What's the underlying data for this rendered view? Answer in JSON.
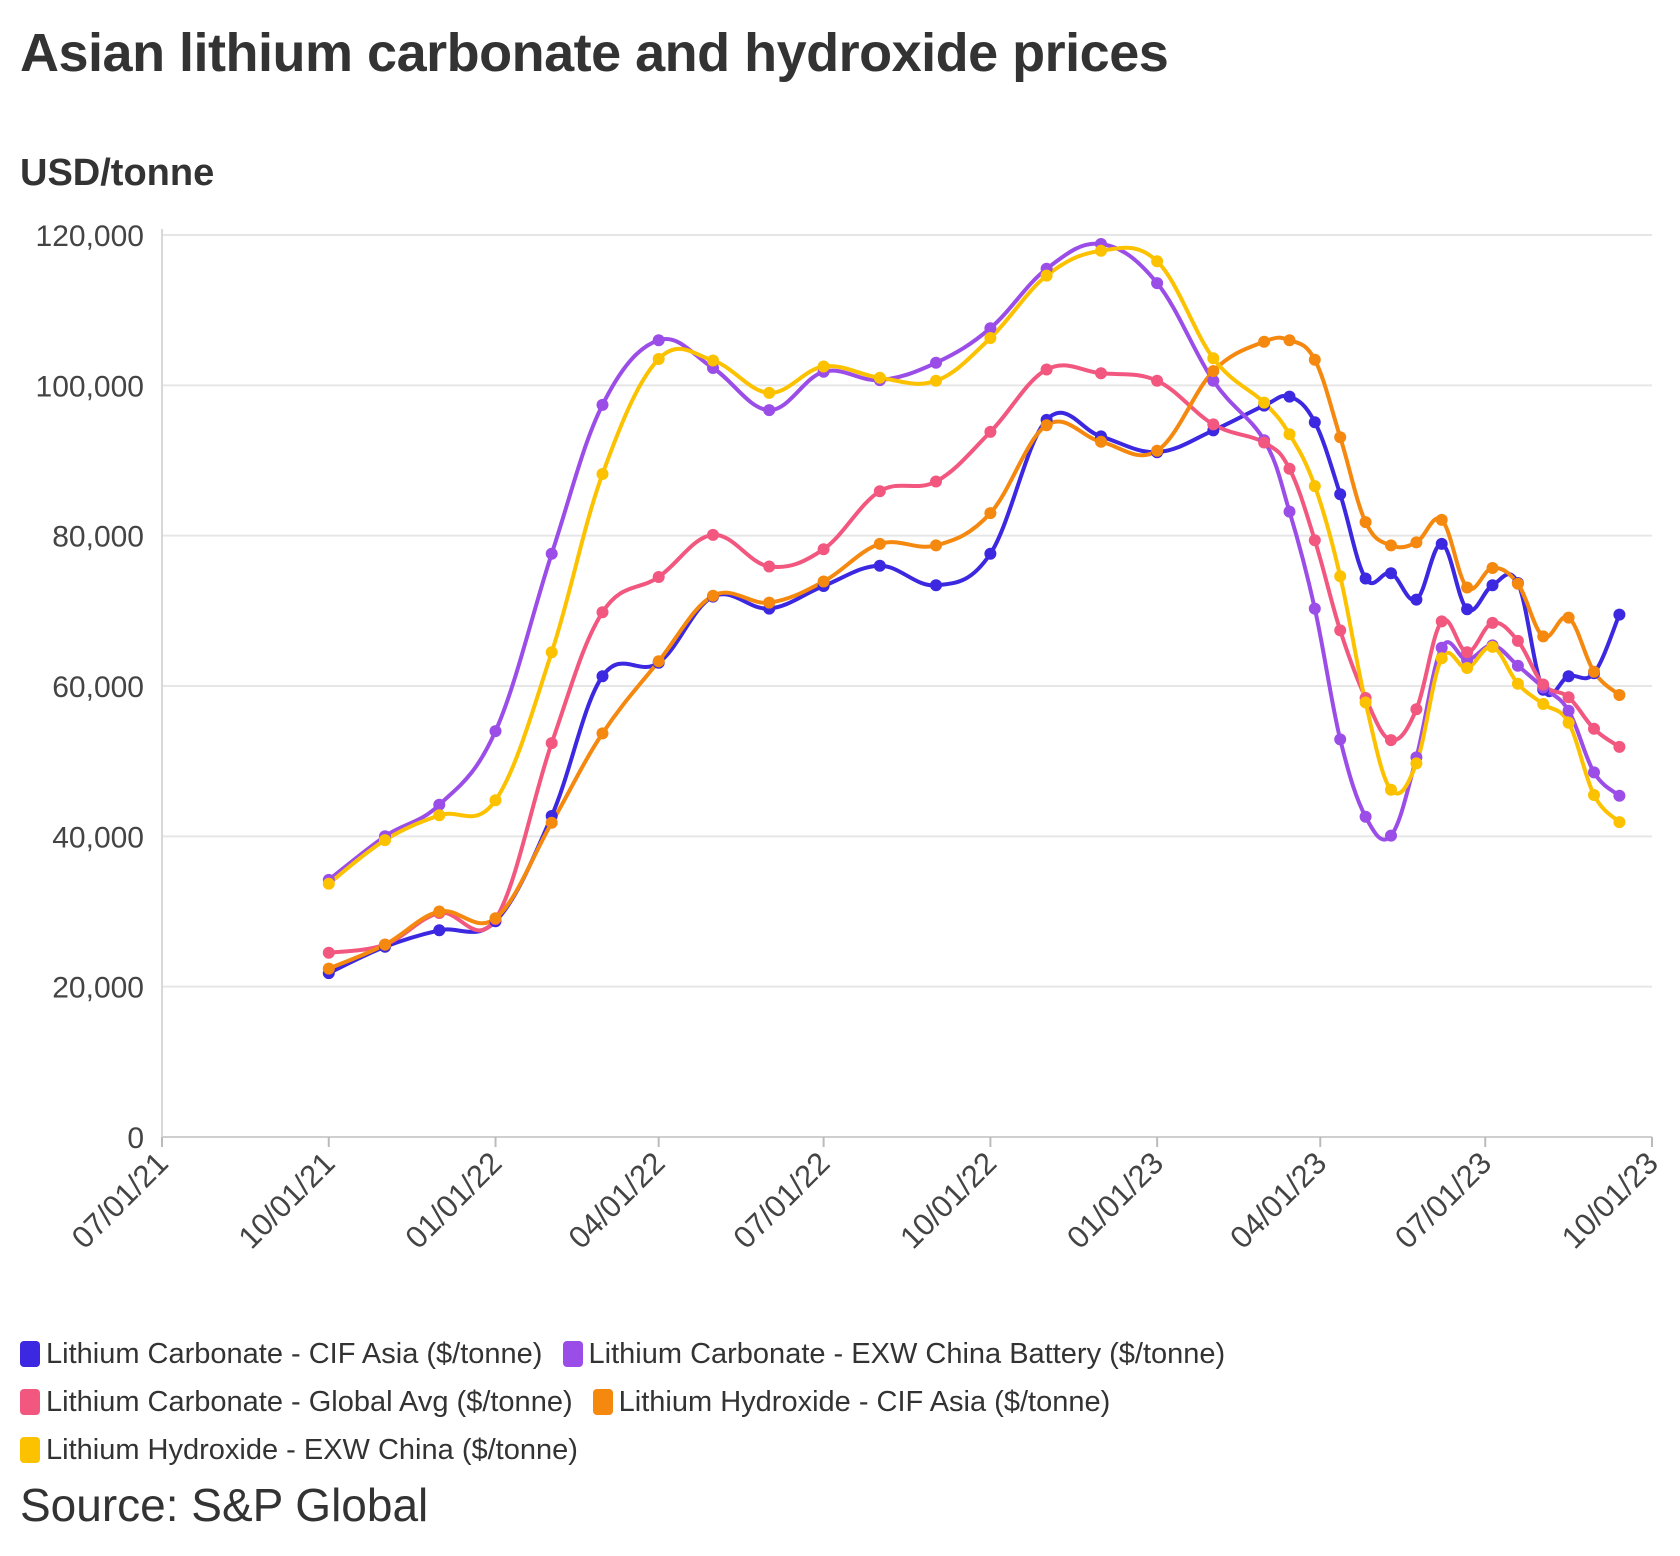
{
  "title": "Asian lithium carbonate and hydroxide prices",
  "unit_label": "USD/tonne",
  "source": "Source: S&P Global",
  "chart_data": {
    "type": "line",
    "title": "Asian lithium carbonate and hydroxide prices",
    "ylabel": "USD/tonne",
    "xlabel": "",
    "ylim": [
      0,
      120000
    ],
    "xlim": [
      "2021-07-01",
      "2023-10-01"
    ],
    "y_ticks": [
      0,
      20000,
      40000,
      60000,
      80000,
      100000,
      120000
    ],
    "y_tick_labels": [
      "0",
      "20,000",
      "40,000",
      "60,000",
      "80,000",
      "100,000",
      "120,000"
    ],
    "x_ticks": [
      "2021-07-01",
      "2021-10-01",
      "2022-01-01",
      "2022-04-01",
      "2022-07-01",
      "2022-10-01",
      "2023-01-01",
      "2023-04-01",
      "2023-07-01",
      "2023-10-01"
    ],
    "x_tick_labels": [
      "07/01/21",
      "10/01/21",
      "01/01/22",
      "04/01/22",
      "07/01/22",
      "10/01/22",
      "01/01/23",
      "04/01/23",
      "07/01/23",
      "10/01/23"
    ],
    "grid": "horizontal",
    "legend_position": "bottom",
    "series": [
      {
        "name": "Lithium Carbonate - CIF Asia ($/tonne)",
        "color": "#3b28e0",
        "points": [
          [
            "2021-10-01",
            21800
          ],
          [
            "2021-11-01",
            25300
          ],
          [
            "2021-12-01",
            27500
          ],
          [
            "2022-01-01",
            28700
          ],
          [
            "2022-02-01",
            42700
          ],
          [
            "2022-03-01",
            61300
          ],
          [
            "2022-04-01",
            63100
          ],
          [
            "2022-05-01",
            71900
          ],
          [
            "2022-06-01",
            70300
          ],
          [
            "2022-07-01",
            73300
          ],
          [
            "2022-08-01",
            76000
          ],
          [
            "2022-09-01",
            73400
          ],
          [
            "2022-10-01",
            77600
          ],
          [
            "2022-11-01",
            95400
          ],
          [
            "2022-12-01",
            93200
          ],
          [
            "2023-01-01",
            91100
          ],
          [
            "2023-02-01",
            94000
          ],
          [
            "2023-03-01",
            97300
          ],
          [
            "2023-03-15",
            98500
          ],
          [
            "2023-03-29",
            95100
          ],
          [
            "2023-04-12",
            85500
          ],
          [
            "2023-04-26",
            74300
          ],
          [
            "2023-05-10",
            75000
          ],
          [
            "2023-05-24",
            71500
          ],
          [
            "2023-06-07",
            78900
          ],
          [
            "2023-06-21",
            70200
          ],
          [
            "2023-07-05",
            73400
          ],
          [
            "2023-07-19",
            73700
          ],
          [
            "2023-08-02",
            59500
          ],
          [
            "2023-08-16",
            61300
          ],
          [
            "2023-08-30",
            61700
          ],
          [
            "2023-09-13",
            69500
          ]
        ]
      },
      {
        "name": "Lithium Carbonate - EXW China Battery ($/tonne)",
        "color": "#9b4de8",
        "points": [
          [
            "2021-10-01",
            34200
          ],
          [
            "2021-11-01",
            40000
          ],
          [
            "2021-12-01",
            44200
          ],
          [
            "2022-01-01",
            54000
          ],
          [
            "2022-02-01",
            77600
          ],
          [
            "2022-03-01",
            97400
          ],
          [
            "2022-04-01",
            106000
          ],
          [
            "2022-05-01",
            102300
          ],
          [
            "2022-06-01",
            96700
          ],
          [
            "2022-07-01",
            101800
          ],
          [
            "2022-08-01",
            100700
          ],
          [
            "2022-09-01",
            103000
          ],
          [
            "2022-10-01",
            107600
          ],
          [
            "2022-11-01",
            115500
          ],
          [
            "2022-12-01",
            118800
          ],
          [
            "2023-01-01",
            113600
          ],
          [
            "2023-02-01",
            100600
          ],
          [
            "2023-03-01",
            92700
          ],
          [
            "2023-03-15",
            83200
          ],
          [
            "2023-03-29",
            70300
          ],
          [
            "2023-04-12",
            52900
          ],
          [
            "2023-04-26",
            42600
          ],
          [
            "2023-05-10",
            40100
          ],
          [
            "2023-05-24",
            50500
          ],
          [
            "2023-06-07",
            65100
          ],
          [
            "2023-06-21",
            63500
          ],
          [
            "2023-07-05",
            65400
          ],
          [
            "2023-07-19",
            62700
          ],
          [
            "2023-08-02",
            59800
          ],
          [
            "2023-08-16",
            56700
          ],
          [
            "2023-08-30",
            48500
          ],
          [
            "2023-09-13",
            45400
          ]
        ]
      },
      {
        "name": "Lithium Carbonate - Global Avg ($/tonne)",
        "color": "#f2587f",
        "points": [
          [
            "2021-10-01",
            24500
          ],
          [
            "2021-11-01",
            25600
          ],
          [
            "2021-12-01",
            29800
          ],
          [
            "2022-01-01",
            29000
          ],
          [
            "2022-02-01",
            52400
          ],
          [
            "2022-03-01",
            69800
          ],
          [
            "2022-04-01",
            74500
          ],
          [
            "2022-05-01",
            80100
          ],
          [
            "2022-06-01",
            75900
          ],
          [
            "2022-07-01",
            78200
          ],
          [
            "2022-08-01",
            85900
          ],
          [
            "2022-09-01",
            87200
          ],
          [
            "2022-10-01",
            93800
          ],
          [
            "2022-11-01",
            102100
          ],
          [
            "2022-12-01",
            101600
          ],
          [
            "2023-01-01",
            100600
          ],
          [
            "2023-02-01",
            94800
          ],
          [
            "2023-03-01",
            92400
          ],
          [
            "2023-03-15",
            88900
          ],
          [
            "2023-03-29",
            79400
          ],
          [
            "2023-04-12",
            67400
          ],
          [
            "2023-04-26",
            58400
          ],
          [
            "2023-05-10",
            52800
          ],
          [
            "2023-05-24",
            56900
          ],
          [
            "2023-06-07",
            68600
          ],
          [
            "2023-06-21",
            64500
          ],
          [
            "2023-07-05",
            68400
          ],
          [
            "2023-07-19",
            66000
          ],
          [
            "2023-08-02",
            60200
          ],
          [
            "2023-08-16",
            58500
          ],
          [
            "2023-08-30",
            54300
          ],
          [
            "2023-09-13",
            51900
          ]
        ]
      },
      {
        "name": "Lithium Hydroxide - CIF Asia ($/tonne)",
        "color": "#f5880f",
        "points": [
          [
            "2021-10-01",
            22400
          ],
          [
            "2021-11-01",
            25600
          ],
          [
            "2021-12-01",
            30000
          ],
          [
            "2022-01-01",
            29100
          ],
          [
            "2022-02-01",
            41800
          ],
          [
            "2022-03-01",
            53700
          ],
          [
            "2022-04-01",
            63300
          ],
          [
            "2022-05-01",
            72000
          ],
          [
            "2022-06-01",
            71100
          ],
          [
            "2022-07-01",
            73900
          ],
          [
            "2022-08-01",
            78900
          ],
          [
            "2022-09-01",
            78700
          ],
          [
            "2022-10-01",
            83000
          ],
          [
            "2022-11-01",
            94700
          ],
          [
            "2022-12-01",
            92500
          ],
          [
            "2023-01-01",
            91300
          ],
          [
            "2023-02-01",
            101900
          ],
          [
            "2023-03-01",
            105800
          ],
          [
            "2023-03-15",
            106000
          ],
          [
            "2023-03-29",
            103400
          ],
          [
            "2023-04-12",
            93100
          ],
          [
            "2023-04-26",
            81800
          ],
          [
            "2023-05-10",
            78700
          ],
          [
            "2023-05-24",
            79100
          ],
          [
            "2023-06-07",
            82100
          ],
          [
            "2023-06-21",
            73100
          ],
          [
            "2023-07-05",
            75700
          ],
          [
            "2023-07-19",
            73600
          ],
          [
            "2023-08-02",
            66600
          ],
          [
            "2023-08-16",
            69100
          ],
          [
            "2023-08-30",
            61900
          ],
          [
            "2023-09-13",
            58800
          ]
        ]
      },
      {
        "name": "Lithium Hydroxide - EXW China ($/tonne)",
        "color": "#fcc200",
        "points": [
          [
            "2021-10-01",
            33700
          ],
          [
            "2021-11-01",
            39500
          ],
          [
            "2021-12-01",
            42800
          ],
          [
            "2022-01-01",
            44800
          ],
          [
            "2022-02-01",
            64500
          ],
          [
            "2022-03-01",
            88200
          ],
          [
            "2022-04-01",
            103500
          ],
          [
            "2022-05-01",
            103300
          ],
          [
            "2022-06-01",
            99000
          ],
          [
            "2022-07-01",
            102500
          ],
          [
            "2022-08-01",
            101000
          ],
          [
            "2022-09-01",
            100600
          ],
          [
            "2022-10-01",
            106300
          ],
          [
            "2022-11-01",
            114600
          ],
          [
            "2022-12-01",
            117900
          ],
          [
            "2023-01-01",
            116500
          ],
          [
            "2023-02-01",
            103600
          ],
          [
            "2023-03-01",
            97700
          ],
          [
            "2023-03-15",
            93500
          ],
          [
            "2023-03-29",
            86600
          ],
          [
            "2023-04-12",
            74600
          ],
          [
            "2023-04-26",
            57800
          ],
          [
            "2023-05-10",
            46200
          ],
          [
            "2023-05-24",
            49700
          ],
          [
            "2023-06-07",
            63700
          ],
          [
            "2023-06-21",
            62400
          ],
          [
            "2023-07-05",
            65200
          ],
          [
            "2023-07-19",
            60300
          ],
          [
            "2023-08-02",
            57600
          ],
          [
            "2023-08-16",
            55100
          ],
          [
            "2023-08-30",
            45500
          ],
          [
            "2023-09-13",
            41900
          ]
        ]
      }
    ]
  }
}
